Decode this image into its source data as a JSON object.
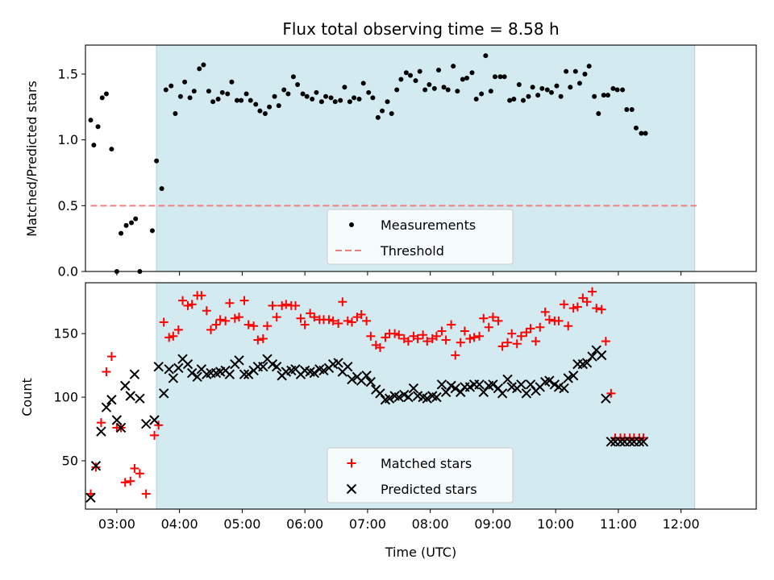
{
  "chart_data": [
    {
      "type": "scatter",
      "title": "Flux total observing time = 8.58 h",
      "ylabel": "Matched/Predicted stars",
      "ylim": [
        0,
        1.72
      ],
      "yticks": [
        "0.0",
        "0.5",
        "1.0",
        "1.5"
      ],
      "xlim": [
        "02:30",
        "13:12"
      ],
      "observing_window": [
        "03:38",
        "12:13"
      ],
      "shade_color": "#d3eaf1",
      "legend": {
        "position": "bottom-center",
        "entries": [
          "Measurements",
          "Threshold"
        ]
      },
      "threshold": {
        "name": "Threshold",
        "y": 0.5,
        "x_range": [
          "02:35",
          "12:15"
        ],
        "color": "#f08080"
      },
      "series": [
        {
          "name": "Measurements",
          "color": "#000000",
          "points": [
            [
              "02:35",
              1.15
            ],
            [
              "02:38",
              0.96
            ],
            [
              "02:42",
              1.1
            ],
            [
              "02:46",
              1.32
            ],
            [
              "02:50",
              1.35
            ],
            [
              "02:55",
              0.93
            ],
            [
              "03:00",
              0.0
            ],
            [
              "03:04",
              0.29
            ],
            [
              "03:09",
              0.35
            ],
            [
              "03:14",
              0.37
            ],
            [
              "03:18",
              0.4
            ],
            [
              "03:22",
              0.0
            ],
            [
              "03:34",
              0.31
            ],
            [
              "03:38",
              0.84
            ],
            [
              "03:43",
              0.63
            ],
            [
              "03:47",
              1.38
            ],
            [
              "03:52",
              1.41
            ],
            [
              "03:56",
              1.2
            ],
            [
              "04:01",
              1.33
            ],
            [
              "04:05",
              1.44
            ],
            [
              "04:10",
              1.32
            ],
            [
              "04:14",
              1.37
            ],
            [
              "04:19",
              1.54
            ],
            [
              "04:23",
              1.57
            ],
            [
              "04:28",
              1.37
            ],
            [
              "04:32",
              1.29
            ],
            [
              "04:37",
              1.31
            ],
            [
              "04:41",
              1.36
            ],
            [
              "04:46",
              1.35
            ],
            [
              "04:50",
              1.44
            ],
            [
              "04:55",
              1.3
            ],
            [
              "04:59",
              1.3
            ],
            [
              "05:04",
              1.35
            ],
            [
              "05:08",
              1.3
            ],
            [
              "05:13",
              1.27
            ],
            [
              "05:17",
              1.22
            ],
            [
              "05:22",
              1.2
            ],
            [
              "05:26",
              1.25
            ],
            [
              "05:31",
              1.33
            ],
            [
              "05:35",
              1.26
            ],
            [
              "05:40",
              1.38
            ],
            [
              "05:44",
              1.35
            ],
            [
              "05:49",
              1.48
            ],
            [
              "05:53",
              1.42
            ],
            [
              "05:58",
              1.35
            ],
            [
              "06:02",
              1.33
            ],
            [
              "06:07",
              1.31
            ],
            [
              "06:11",
              1.36
            ],
            [
              "06:16",
              1.29
            ],
            [
              "06:20",
              1.33
            ],
            [
              "06:25",
              1.32
            ],
            [
              "06:29",
              1.29
            ],
            [
              "06:34",
              1.3
            ],
            [
              "06:38",
              1.4
            ],
            [
              "06:43",
              1.29
            ],
            [
              "06:47",
              1.32
            ],
            [
              "06:52",
              1.31
            ],
            [
              "06:56",
              1.43
            ],
            [
              "07:01",
              1.36
            ],
            [
              "07:05",
              1.32
            ],
            [
              "07:10",
              1.17
            ],
            [
              "07:14",
              1.22
            ],
            [
              "07:19",
              1.29
            ],
            [
              "07:23",
              1.2
            ],
            [
              "07:28",
              1.38
            ],
            [
              "07:32",
              1.46
            ],
            [
              "07:37",
              1.51
            ],
            [
              "07:41",
              1.49
            ],
            [
              "07:46",
              1.45
            ],
            [
              "07:50",
              1.52
            ],
            [
              "07:55",
              1.38
            ],
            [
              "07:59",
              1.42
            ],
            [
              "08:04",
              1.39
            ],
            [
              "08:08",
              1.53
            ],
            [
              "08:13",
              1.4
            ],
            [
              "08:17",
              1.38
            ],
            [
              "08:22",
              1.56
            ],
            [
              "08:26",
              1.37
            ],
            [
              "08:31",
              1.46
            ],
            [
              "08:35",
              1.47
            ],
            [
              "08:40",
              1.51
            ],
            [
              "08:44",
              1.31
            ],
            [
              "08:49",
              1.35
            ],
            [
              "08:53",
              1.64
            ],
            [
              "08:58",
              1.37
            ],
            [
              "09:02",
              1.48
            ],
            [
              "09:07",
              1.48
            ],
            [
              "09:11",
              1.48
            ],
            [
              "09:16",
              1.3
            ],
            [
              "09:20",
              1.31
            ],
            [
              "09:25",
              1.42
            ],
            [
              "09:29",
              1.3
            ],
            [
              "09:34",
              1.33
            ],
            [
              "09:38",
              1.4
            ],
            [
              "09:43",
              1.34
            ],
            [
              "09:47",
              1.39
            ],
            [
              "09:52",
              1.38
            ],
            [
              "09:56",
              1.36
            ],
            [
              "10:01",
              1.41
            ],
            [
              "10:05",
              1.33
            ],
            [
              "10:10",
              1.52
            ],
            [
              "10:14",
              1.4
            ],
            [
              "10:19",
              1.52
            ],
            [
              "10:23",
              1.43
            ],
            [
              "10:28",
              1.5
            ],
            [
              "10:32",
              1.56
            ],
            [
              "10:37",
              1.33
            ],
            [
              "10:41",
              1.2
            ],
            [
              "10:46",
              1.34
            ],
            [
              "10:50",
              1.34
            ],
            [
              "10:55",
              1.39
            ],
            [
              "10:59",
              1.38
            ],
            [
              "11:04",
              1.38
            ],
            [
              "11:08",
              1.23
            ],
            [
              "11:13",
              1.23
            ],
            [
              "11:17",
              1.09
            ],
            [
              "11:22",
              1.05
            ],
            [
              "11:26",
              1.05
            ]
          ]
        }
      ]
    },
    {
      "type": "scatter",
      "xlabel": "Time (UTC)",
      "ylabel": "Count",
      "ylim": [
        12,
        190
      ],
      "yticks": [
        "50",
        "100",
        "150"
      ],
      "xticks": [
        "03:00",
        "04:00",
        "05:00",
        "06:00",
        "07:00",
        "08:00",
        "09:00",
        "10:00",
        "11:00",
        "12:00"
      ],
      "xlim": [
        "02:30",
        "13:12"
      ],
      "observing_window": [
        "03:38",
        "12:13"
      ],
      "shade_color": "#d3eaf1",
      "legend": {
        "position": "bottom-center",
        "entries": [
          "Matched stars",
          "Predicted stars"
        ]
      },
      "series": [
        {
          "name": "Matched stars",
          "color": "#ff0000",
          "x": [
            "02:35",
            "02:40",
            "02:45",
            "02:50",
            "02:55",
            "03:00",
            "03:04",
            "03:08",
            "03:13",
            "03:17",
            "03:22",
            "03:28",
            "03:36",
            "03:40",
            "03:45",
            "03:50",
            "03:54",
            "03:59",
            "04:03",
            "04:08",
            "04:12",
            "04:17",
            "04:21",
            "04:26",
            "04:30",
            "04:35",
            "04:39",
            "04:44",
            "04:48",
            "04:53",
            "04:57",
            "05:02",
            "05:06",
            "05:11",
            "05:15",
            "05:20",
            "05:24",
            "05:29",
            "05:33",
            "05:38",
            "05:42",
            "05:47",
            "05:51",
            "05:56",
            "06:00",
            "06:05",
            "06:09",
            "06:14",
            "06:18",
            "06:23",
            "06:27",
            "06:32",
            "06:36",
            "06:41",
            "06:45",
            "06:50",
            "06:54",
            "06:59",
            "07:03",
            "07:08",
            "07:12",
            "07:17",
            "07:21",
            "07:26",
            "07:30",
            "07:35",
            "07:39",
            "07:44",
            "07:48",
            "07:53",
            "07:57",
            "08:02",
            "08:06",
            "08:11",
            "08:15",
            "08:20",
            "08:24",
            "08:29",
            "08:33",
            "08:38",
            "08:42",
            "08:47",
            "08:51",
            "08:56",
            "09:00",
            "09:05",
            "09:09",
            "09:14",
            "09:18",
            "09:23",
            "09:27",
            "09:32",
            "09:36",
            "09:41",
            "09:45",
            "09:50",
            "09:54",
            "09:59",
            "10:03",
            "10:08",
            "10:12",
            "10:17",
            "10:21",
            "10:26",
            "10:30",
            "10:35",
            "10:39",
            "10:44",
            "10:48",
            "10:53",
            "10:57",
            "11:02",
            "11:06",
            "11:11",
            "11:15",
            "11:20",
            "11:24"
          ],
          "values": [
            24,
            45,
            80,
            120,
            132,
            76,
            76,
            33,
            34,
            44,
            40,
            24,
            70,
            78,
            159,
            147,
            148,
            153,
            176,
            172,
            173,
            180,
            180,
            168,
            153,
            157,
            161,
            160,
            174,
            162,
            163,
            176,
            157,
            156,
            145,
            146,
            156,
            172,
            163,
            172,
            173,
            172,
            172,
            162,
            157,
            166,
            163,
            161,
            161,
            161,
            160,
            158,
            175,
            160,
            159,
            163,
            165,
            160,
            148,
            141,
            139,
            147,
            150,
            150,
            149,
            146,
            144,
            148,
            146,
            149,
            144,
            146,
            148,
            152,
            145,
            157,
            133,
            143,
            152,
            146,
            147,
            148,
            162,
            155,
            163,
            160,
            140,
            143,
            150,
            142,
            148,
            151,
            154,
            144,
            155,
            167,
            161,
            160,
            160,
            173,
            156,
            170,
            171,
            178,
            175,
            183,
            170,
            169,
            144,
            103,
            68,
            68,
            68,
            68,
            68,
            68,
            68
          ]
        },
        {
          "name": "Predicted stars",
          "color": "#000000",
          "x": [
            "02:35",
            "02:40",
            "02:45",
            "02:50",
            "02:55",
            "03:00",
            "03:04",
            "03:08",
            "03:13",
            "03:17",
            "03:22",
            "03:28",
            "03:36",
            "03:40",
            "03:45",
            "03:50",
            "03:54",
            "03:59",
            "04:03",
            "04:08",
            "04:12",
            "04:17",
            "04:21",
            "04:26",
            "04:30",
            "04:35",
            "04:39",
            "04:44",
            "04:48",
            "04:53",
            "04:57",
            "05:02",
            "05:06",
            "05:11",
            "05:15",
            "05:20",
            "05:24",
            "05:29",
            "05:33",
            "05:38",
            "05:42",
            "05:47",
            "05:51",
            "05:56",
            "06:00",
            "06:05",
            "06:09",
            "06:14",
            "06:18",
            "06:23",
            "06:27",
            "06:32",
            "06:36",
            "06:41",
            "06:45",
            "06:50",
            "06:54",
            "06:59",
            "07:03",
            "07:08",
            "07:12",
            "07:17",
            "07:21",
            "07:26",
            "07:30",
            "07:35",
            "07:39",
            "07:44",
            "07:48",
            "07:53",
            "07:57",
            "08:02",
            "08:06",
            "08:11",
            "08:15",
            "08:20",
            "08:24",
            "08:29",
            "08:33",
            "08:38",
            "08:42",
            "08:47",
            "08:51",
            "08:56",
            "09:00",
            "09:05",
            "09:09",
            "09:14",
            "09:18",
            "09:23",
            "09:27",
            "09:32",
            "09:36",
            "09:41",
            "09:45",
            "09:50",
            "09:54",
            "09:59",
            "10:03",
            "10:08",
            "10:12",
            "10:17",
            "10:21",
            "10:26",
            "10:30",
            "10:35",
            "10:39",
            "10:44",
            "10:48",
            "10:53",
            "10:57",
            "11:02",
            "11:06",
            "11:11",
            "11:15",
            "11:20",
            "11:24"
          ],
          "values": [
            21,
            46,
            73,
            92,
            98,
            82,
            76,
            109,
            101,
            118,
            99,
            79,
            82,
            124,
            103,
            122,
            115,
            123,
            130,
            126,
            119,
            116,
            122,
            118,
            119,
            119,
            120,
            121,
            118,
            126,
            129,
            118,
            118,
            121,
            124,
            124,
            130,
            126,
            124,
            117,
            120,
            121,
            122,
            118,
            121,
            120,
            119,
            122,
            121,
            123,
            126,
            127,
            120,
            124,
            114,
            116,
            113,
            117,
            112,
            106,
            103,
            98,
            99,
            101,
            100,
            102,
            100,
            107,
            101,
            100,
            99,
            101,
            100,
            110,
            104,
            109,
            107,
            104,
            108,
            108,
            110,
            110,
            104,
            109,
            110,
            107,
            103,
            114,
            108,
            107,
            110,
            103,
            110,
            105,
            108,
            112,
            113,
            110,
            108,
            107,
            115,
            117,
            126,
            126,
            127,
            132,
            137,
            133,
            99,
            65,
            65,
            65,
            65,
            65,
            65,
            65,
            65
          ]
        }
      ]
    }
  ]
}
